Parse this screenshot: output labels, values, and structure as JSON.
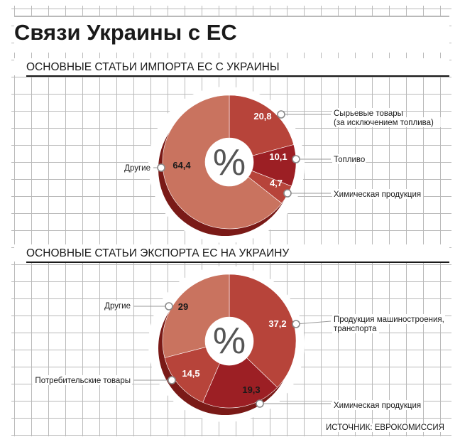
{
  "title": "Связи Украины с ЕС",
  "source": "ИСТОЧНИК: ЕВРОКОМИССИЯ",
  "colors": {
    "dark": "#9c1f24",
    "mid": "#b7443a",
    "light": "#c9735f",
    "shadow": "#7a1a17",
    "text_dark": "#1a1a1a",
    "text_light": "#ffffff"
  },
  "chart_data": [
    {
      "type": "pie",
      "title": "ОСНОВНЫЕ СТАТЬИ ИМПОРТА ЕС С УКРАИНЫ",
      "center_label": "%",
      "slices": [
        {
          "label": "Сырьевые товары (за исключением топлива)",
          "label_lines": [
            "Сырьевые товары",
            "(за исключением топлива)"
          ],
          "value": 20.8,
          "value_text": "20,8"
        },
        {
          "label": "Топливо",
          "label_lines": [
            "Топливо"
          ],
          "value": 10.1,
          "value_text": "10,1"
        },
        {
          "label": "Химическая продукция",
          "label_lines": [
            "Химическая продукция"
          ],
          "value": 4.7,
          "value_text": "4,7"
        },
        {
          "label": "Другие",
          "label_lines": [
            "Другие"
          ],
          "value": 64.4,
          "value_text": "64,4"
        }
      ]
    },
    {
      "type": "pie",
      "title": "ОСНОВНЫЕ СТАТЬИ ЭКСПОРТА ЕС НА УКРАИНУ",
      "center_label": "%",
      "slices": [
        {
          "label": "Продукция машиностроения, транспорта",
          "label_lines": [
            "Продукция машиностроения,",
            "транспорта"
          ],
          "value": 37.2,
          "value_text": "37,2"
        },
        {
          "label": "Химическая продукция",
          "label_lines": [
            "Химическая продукция"
          ],
          "value": 19.3,
          "value_text": "19,3"
        },
        {
          "label": "Потребительские товары",
          "label_lines": [
            "Потребительские товары"
          ],
          "value": 14.5,
          "value_text": "14,5"
        },
        {
          "label": "Другие",
          "label_lines": [
            "Другие"
          ],
          "value": 29,
          "value_text": "29"
        }
      ]
    }
  ]
}
